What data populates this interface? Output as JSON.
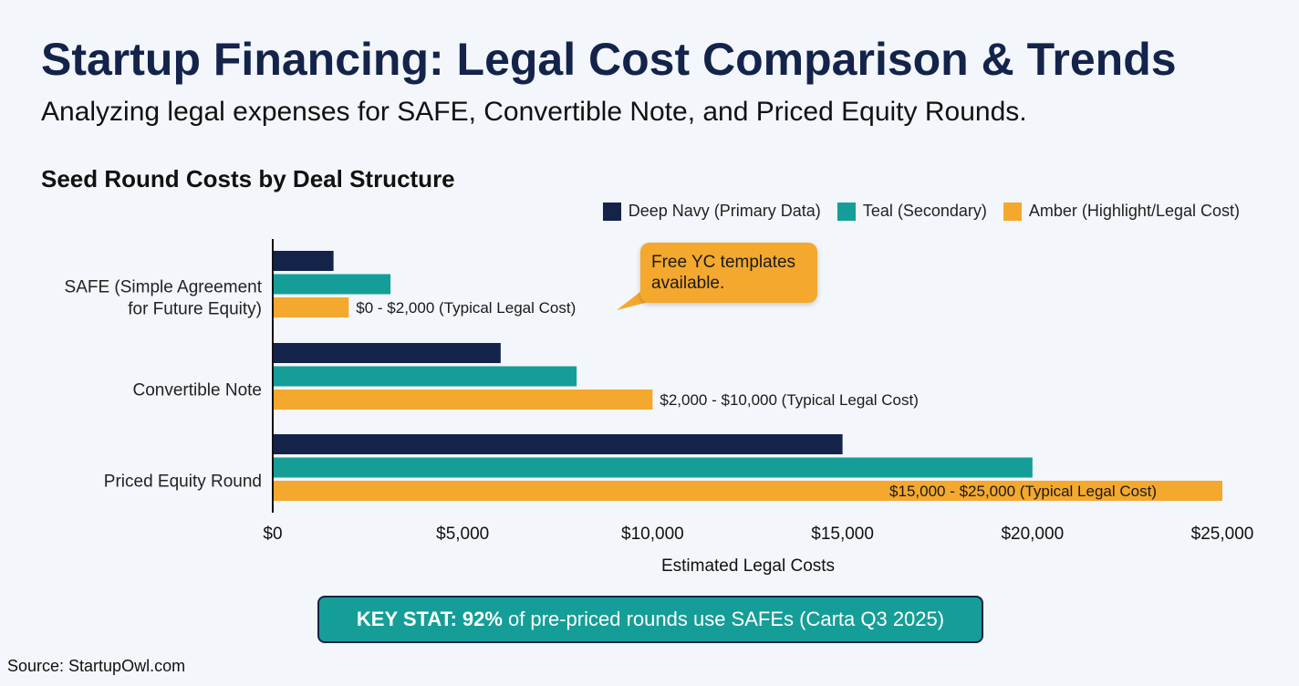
{
  "header": {
    "title": "Startup Financing: Legal Cost Comparison & Trends",
    "subtitle": "Analyzing legal expenses for SAFE, Convertible Note, and Priced Equity Rounds."
  },
  "chart_data": {
    "type": "bar",
    "orientation": "horizontal",
    "title": "Seed Round Costs by Deal Structure",
    "categories": [
      [
        "SAFE (Simple Agreement",
        "for Future Equity)"
      ],
      [
        "Convertible Note"
      ],
      [
        "Priced Equity Round"
      ]
    ],
    "series": [
      {
        "name": "Deep Navy (Primary Data)",
        "color": "#13234a",
        "values": [
          1600,
          6000,
          15000
        ]
      },
      {
        "name": "Teal (Secondary)",
        "color": "#159e98",
        "values": [
          3100,
          8000,
          20000
        ]
      },
      {
        "name": "Amber (Highlight/Legal Cost)",
        "color": "#f4a82e",
        "values": [
          2000,
          10000,
          25000
        ]
      }
    ],
    "data_labels": [
      "$0 - $2,000 (Typical Legal Cost)",
      "$2,000 - $10,000 (Typical Legal Cost)",
      "$15,000 - $25,000 (Typical Legal Cost)"
    ],
    "xlabel": "Estimated Legal Costs",
    "ylabel": "",
    "xlim": [
      0,
      25000
    ],
    "xticks": [
      "$0",
      "$5,000",
      "$10,000",
      "$15,000",
      "$20,000",
      "$25,000"
    ],
    "legend_position": "top-right",
    "grid": false,
    "annotation": "Free YC templates available."
  },
  "key_stat": {
    "label": "KEY STAT:",
    "value": "92%",
    "text": "of pre-priced rounds use SAFEs (Carta Q3 2025)"
  },
  "source": "Source: StartupOwl.com"
}
